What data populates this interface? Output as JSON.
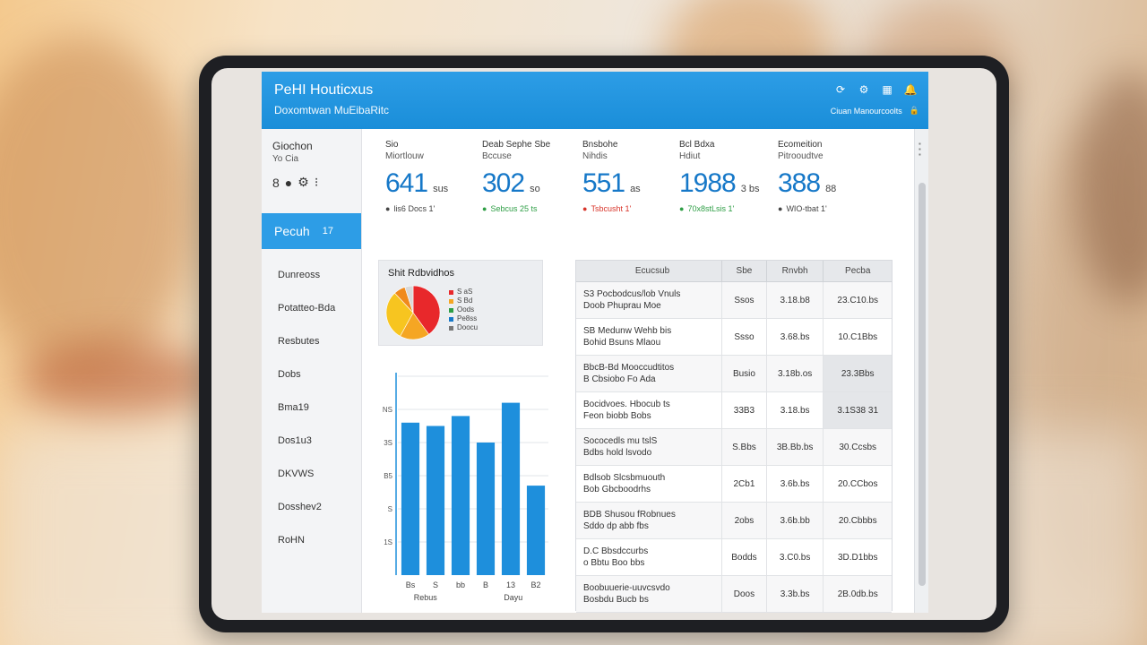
{
  "header": {
    "title": "PeHI Houticxus",
    "subtitle": "Doxomtwan MuEibaRitc",
    "user_label": "Ciuan Manourcoolts"
  },
  "sidebar": {
    "status_title": "Giochon",
    "status_sub": "Yo Cia",
    "active_item": "Pecuh",
    "active_badge": "17",
    "items": [
      "Dunreoss",
      "Potatteo-Bda",
      "Resbutes",
      "Dobs",
      "Bma19",
      "Dos1u3",
      "DKVWS",
      "Dosshev2",
      "RoHN"
    ]
  },
  "kpis": [
    {
      "title": "Sio",
      "sub": "Miortlouw",
      "value": "641",
      "unit": "sus",
      "delta": "lis6 Docs 1'",
      "delta_color": "#444444"
    },
    {
      "title": "Deab Sephe Sbe",
      "sub": "Bccuse",
      "value": "302",
      "unit": "so",
      "delta": "Sebcus 25 ts",
      "delta_color": "#2e9e45"
    },
    {
      "title": "Bnsbohe",
      "sub": "Nihdis",
      "value": "551",
      "unit": "as",
      "delta": "Tsbcusht 1'",
      "delta_color": "#d8352b"
    },
    {
      "title": "Bcl Bdxa",
      "sub": "Hdiut",
      "value": "1988",
      "unit": "3 bs",
      "delta": "70x8stLsis 1'",
      "delta_color": "#2e9e45"
    },
    {
      "title": "Ecomeition",
      "sub": "Pitrooudtve",
      "value": "388",
      "unit": "88",
      "delta": "WIO-tbat 1'",
      "delta_color": "#444444"
    }
  ],
  "donut": {
    "title": "Shit Rdbvidhos",
    "legend": [
      "S aS",
      "S Bd",
      "Oods",
      "Pe8ss",
      "Doocu"
    ],
    "slices": [
      {
        "label": "S aS",
        "value": 40,
        "color": "#e8282b"
      },
      {
        "label": "S Bd",
        "value": 18,
        "color": "#f5a623"
      },
      {
        "label": "Oods",
        "value": 30,
        "color": "#f7c520"
      },
      {
        "label": "Pe8ss",
        "value": 7,
        "color": "#f08a1c"
      },
      {
        "label": "Doocu",
        "value": 5,
        "color": "#d9d9d9"
      }
    ],
    "legend_colors": [
      "#e8282b",
      "#f5a623",
      "#2e9e45",
      "#1678c8",
      "#777777"
    ]
  },
  "chart_data": {
    "type": "bar",
    "title": "",
    "categories": [
      "Bs",
      "S",
      "bb",
      "B",
      "13",
      "B2"
    ],
    "values": [
      46,
      45,
      48,
      40,
      52,
      27
    ],
    "ytick_labels": [
      "NS",
      "3S",
      "B5",
      "S",
      "1S"
    ],
    "ylim": [
      0,
      60
    ],
    "xlabel": "Rebus",
    "xlabel2": "Dayu",
    "color": "#1e8fdc"
  },
  "table": {
    "headers": [
      "Ecucsub",
      "Sbe",
      "Rnvbh",
      "Pecba"
    ],
    "rows": [
      {
        "name": "S3 Pocbodcus/lob Vnuls",
        "sub": "Doob Phuprau Moe",
        "c2": "Ssos",
        "c3": "3.18.b8",
        "c4": "23.C10.bs",
        "hl": false
      },
      {
        "name": "SB Medunw Wehb bis",
        "sub": "Bohid Bsuns Mlaou",
        "c2": "Ssso",
        "c3": "3.68.bs",
        "c4": "10.C1Bbs",
        "hl": false
      },
      {
        "name": "BbcB-Bd Mooccudtitos",
        "sub": "B Cbsiobo Fo Ada",
        "c2": "Busio",
        "c3": "3.18b.os",
        "c4": "23.3Bbs",
        "hl": true
      },
      {
        "name": "Bocidvoes. Hbocub ts",
        "sub": "Feon biobb Bobs",
        "c2": "33B3",
        "c3": "3.18.bs",
        "c4": "3.1S38 31",
        "hl": true
      },
      {
        "name": "Sococedls mu tslS",
        "sub": "Bdbs hold lsvodo",
        "c2": "S.Bbs",
        "c3": "3B.Bb.bs",
        "c4": "30.Ccsbs",
        "hl": false
      },
      {
        "name": "Bdlsob Slcsbmuouth",
        "sub": "Bob Gbcboodrhs",
        "c2": "2Cb1",
        "c3": "3.6b.bs",
        "c4": "20.CCbos",
        "hl": false
      },
      {
        "name": "BDB Shusou fRobnues",
        "sub": "Sddo dp abb fbs",
        "c2": "2obs",
        "c3": "3.6b.bb",
        "c4": "20.Cbbbs",
        "hl": false
      },
      {
        "name": "D.C Bbsdccurbs",
        "sub": "o Bbtu Boo bbs",
        "c2": "Bodds",
        "c3": "3.C0.bs",
        "c4": "3D.D1bbs",
        "hl": false
      },
      {
        "name": "Boobuuerie-uuvcsvdo",
        "sub": "Bosbdu Bucb bs",
        "c2": "Doos",
        "c3": "3.3b.bs",
        "c4": "2B.0db.bs",
        "hl": false
      }
    ]
  }
}
